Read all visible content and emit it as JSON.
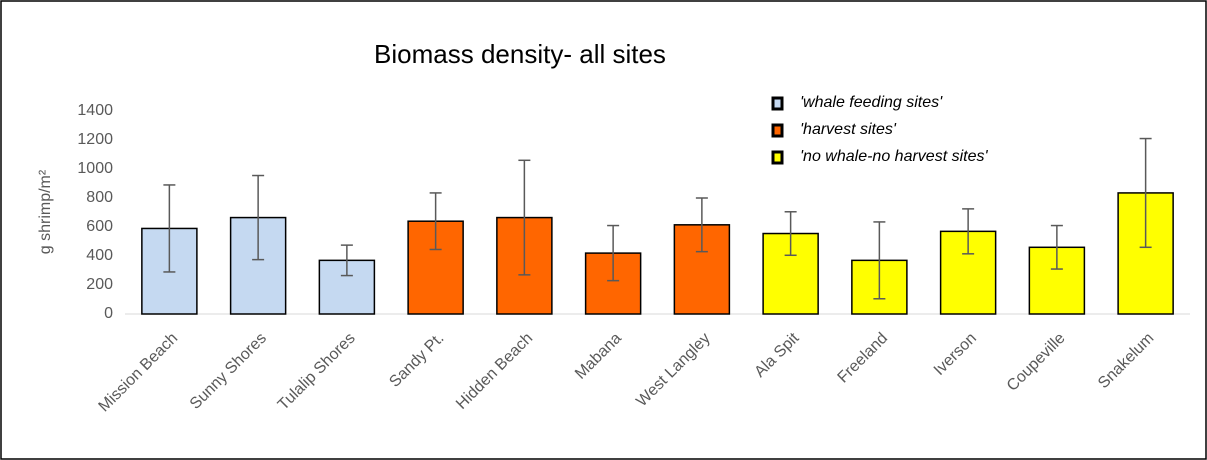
{
  "chart_data": {
    "type": "bar",
    "title": "Biomass density- all sites",
    "y_label": "g shrimp/m²",
    "categories": [
      "Mission Beach",
      "Sunny Shores",
      "Tulalip Shores",
      "Sandy Pt.",
      "Hidden Beach",
      "Mabana",
      "West Langley",
      "Ala Spit",
      "Freeland",
      "Iverson",
      "Coupeville",
      "Snakelum"
    ],
    "series": [
      {
        "name": "'whale feeding sites'",
        "color": "#c5d9f1",
        "values": [
          590,
          665,
          370,
          null,
          null,
          null,
          null,
          null,
          null,
          null,
          null,
          null
        ],
        "errors": [
          300,
          290,
          105,
          null,
          null,
          null,
          null,
          null,
          null,
          null,
          null,
          null
        ]
      },
      {
        "name": "'harvest sites'",
        "color": "#ff6600",
        "values": [
          null,
          null,
          null,
          640,
          665,
          420,
          615,
          null,
          null,
          null,
          null,
          null
        ],
        "errors": [
          null,
          null,
          null,
          195,
          395,
          190,
          185,
          null,
          null,
          null,
          null,
          null
        ]
      },
      {
        "name": "'no whale-no harvest sites'",
        "color": "#ffff00",
        "values": [
          null,
          null,
          null,
          null,
          null,
          null,
          null,
          555,
          370,
          570,
          460,
          835
        ],
        "errors": [
          null,
          null,
          null,
          null,
          null,
          null,
          null,
          150,
          265,
          155,
          150,
          375
        ]
      }
    ],
    "ylim": [
      0,
      1400
    ],
    "yticks": [
      0,
      200,
      400,
      600,
      800,
      1000,
      1200,
      1400
    ],
    "grid": false
  }
}
